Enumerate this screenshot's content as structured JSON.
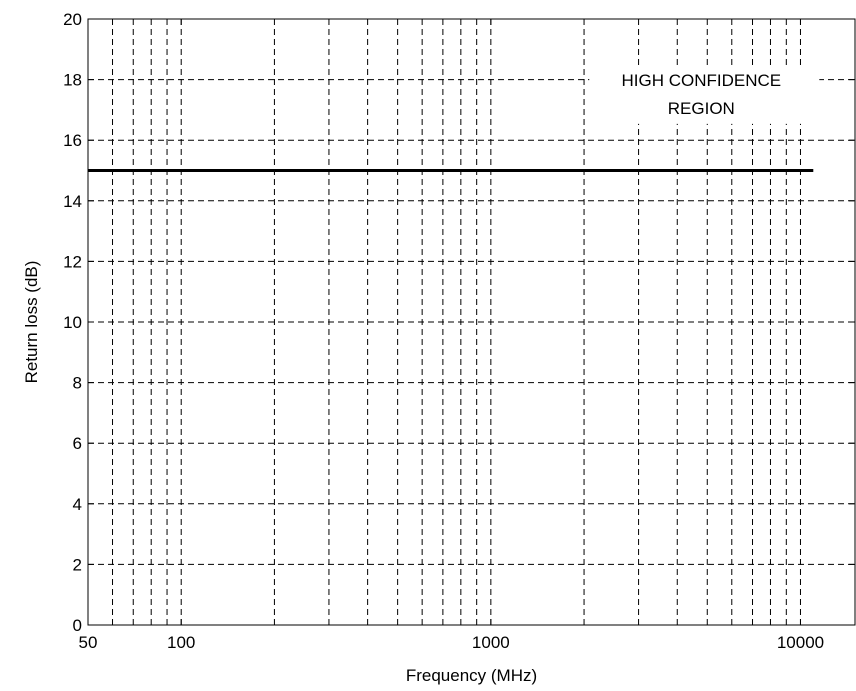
{
  "chart_data": {
    "type": "line",
    "title": "",
    "xlabel": "Frequency (MHz)",
    "ylabel": "Return loss (dB)",
    "x_scale": "log",
    "xlim": [
      50,
      15000
    ],
    "ylim": [
      0,
      20
    ],
    "grid": true,
    "x_ticks": [
      50,
      100,
      1000,
      10000
    ],
    "x_tick_labels": [
      "50",
      "100",
      "1000",
      "10000"
    ],
    "y_ticks": [
      0,
      2,
      4,
      6,
      8,
      10,
      12,
      14,
      16,
      18,
      20
    ],
    "y_tick_labels": [
      "0",
      "2",
      "4",
      "6",
      "8",
      "10",
      "12",
      "14",
      "16",
      "18",
      "20"
    ],
    "series": [
      {
        "x": [
          50,
          11000
        ],
        "y": [
          15,
          15
        ],
        "color": "#000000"
      }
    ],
    "annotation": {
      "lines": [
        "HIGH CONFIDENCE",
        "REGION"
      ],
      "x": 2800,
      "y": 17.2
    }
  }
}
